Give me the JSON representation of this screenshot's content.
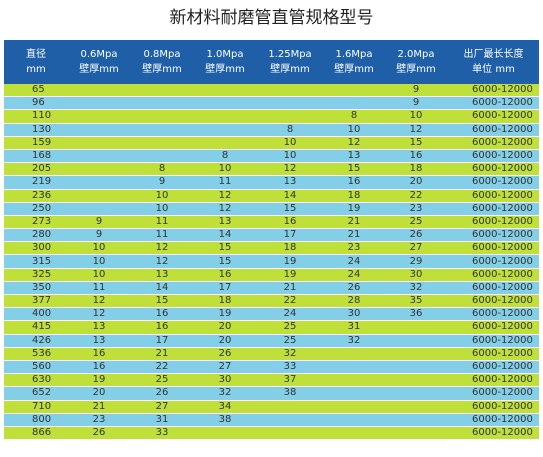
{
  "title": "新材料耐磨管直管规格型号",
  "headers": [
    {
      "l1": "直径",
      "l2": "mm"
    },
    {
      "l1": "0.6Mpa",
      "l2": "壁厚mm"
    },
    {
      "l1": "0.8Mpa",
      "l2": "壁厚mm"
    },
    {
      "l1": "1.0Mpa",
      "l2": "壁厚mm"
    },
    {
      "l1": "1.25Mpa",
      "l2": "壁厚mm"
    },
    {
      "l1": "1.6Mpa",
      "l2": "壁厚mm"
    },
    {
      "l1": "2.0Mpa",
      "l2": "壁厚mm"
    },
    {
      "l1": "出厂最长长度",
      "l2": "单位 mm"
    }
  ],
  "rows": [
    [
      "65",
      "",
      "",
      "",
      "",
      "",
      "9",
      "6000-12000"
    ],
    [
      "96",
      "",
      "",
      "",
      "",
      "",
      "9",
      "6000-12000"
    ],
    [
      "110",
      "",
      "",
      "",
      "",
      "8",
      "10",
      "6000-12000"
    ],
    [
      "130",
      "",
      "",
      "",
      "8",
      "10",
      "12",
      "6000-12000"
    ],
    [
      "159",
      "",
      "",
      "",
      "10",
      "12",
      "15",
      "6000-12000"
    ],
    [
      "168",
      "",
      "",
      "8",
      "10",
      "13",
      "16",
      "6000-12000"
    ],
    [
      "205",
      "",
      "8",
      "10",
      "12",
      "15",
      "18",
      "6000-12000"
    ],
    [
      "219",
      "",
      "9",
      "11",
      "13",
      "16",
      "20",
      "6000-12000"
    ],
    [
      "236",
      "",
      "10",
      "12",
      "14",
      "18",
      "22",
      "6000-12000"
    ],
    [
      "250",
      "",
      "10",
      "12",
      "15",
      "19",
      "23",
      "6000-12000"
    ],
    [
      "273",
      "9",
      "11",
      "13",
      "16",
      "21",
      "25",
      "6000-12000"
    ],
    [
      "280",
      "9",
      "11",
      "14",
      "17",
      "21",
      "26",
      "6000-12000"
    ],
    [
      "300",
      "10",
      "12",
      "15",
      "18",
      "23",
      "27",
      "6000-12000"
    ],
    [
      "315",
      "10",
      "12",
      "15",
      "19",
      "24",
      "29",
      "6000-12000"
    ],
    [
      "325",
      "10",
      "13",
      "16",
      "19",
      "24",
      "30",
      "6000-12000"
    ],
    [
      "350",
      "11",
      "14",
      "17",
      "21",
      "26",
      "32",
      "6000-12000"
    ],
    [
      "377",
      "12",
      "15",
      "18",
      "22",
      "28",
      "35",
      "6000-12000"
    ],
    [
      "400",
      "12",
      "16",
      "19",
      "24",
      "30",
      "36",
      "6000-12000"
    ],
    [
      "415",
      "13",
      "16",
      "20",
      "25",
      "31",
      "",
      "6000-12000"
    ],
    [
      "426",
      "13",
      "17",
      "20",
      "25",
      "32",
      "",
      "6000-12000"
    ],
    [
      "536",
      "16",
      "21",
      "26",
      "32",
      "",
      "",
      "6000-12000"
    ],
    [
      "560",
      "16",
      "22",
      "27",
      "33",
      "",
      "",
      "6000-12000"
    ],
    [
      "630",
      "19",
      "25",
      "30",
      "37",
      "",
      "",
      "6000-12000"
    ],
    [
      "652",
      "20",
      "26",
      "32",
      "38",
      "",
      "",
      "6000-12000"
    ],
    [
      "710",
      "21",
      "27",
      "34",
      "",
      "",
      "",
      "6000-12000"
    ],
    [
      "800",
      "23",
      "31",
      "38",
      "",
      "",
      "",
      "6000-12000"
    ],
    [
      "866",
      "26",
      "33",
      "",
      "",
      "",
      "",
      "6000-12000"
    ]
  ],
  "colors": {
    "header_bg": "#1e5fa8",
    "row_green": "#bfe039",
    "row_blue": "#83cfe8"
  }
}
